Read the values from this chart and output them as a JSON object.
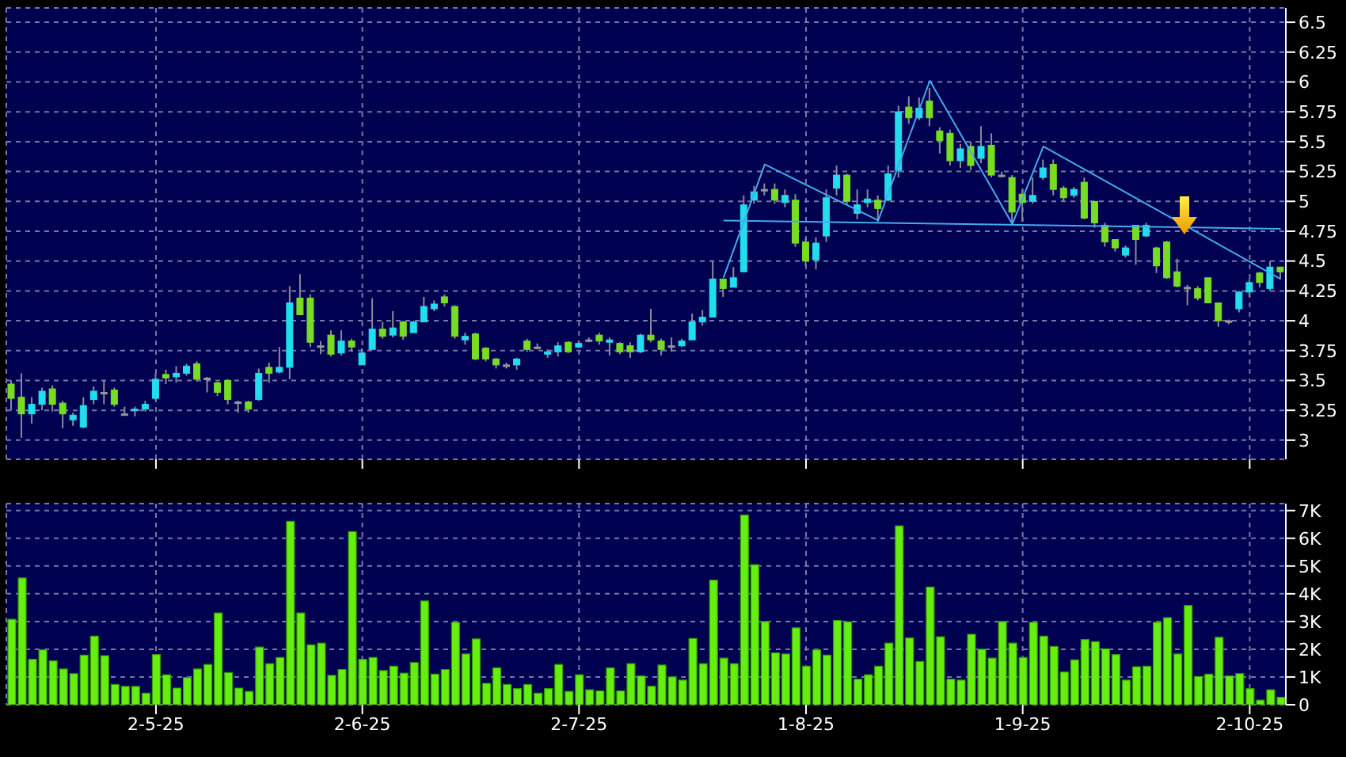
{
  "chart_data": [
    {
      "type": "candlestick",
      "categories": [
        null,
        null,
        null,
        null,
        null,
        null,
        null,
        null,
        null,
        null,
        null,
        null,
        null,
        null,
        null,
        null,
        null,
        null,
        null,
        null,
        null,
        null,
        null,
        null,
        null,
        null,
        null,
        null,
        null,
        null,
        null,
        null,
        null,
        null,
        null,
        null,
        null,
        null,
        null,
        null,
        null,
        null,
        null,
        null,
        null,
        null,
        null,
        null,
        null,
        null,
        null,
        null,
        null,
        null,
        null,
        null,
        null,
        null,
        null,
        null,
        null,
        null,
        null,
        null,
        null,
        null,
        null,
        null,
        null,
        null,
        null,
        null,
        null,
        null,
        null,
        null,
        null,
        null,
        null,
        null,
        null,
        null,
        null,
        null,
        null,
        null,
        null,
        null,
        null,
        null,
        null,
        null,
        null,
        null,
        null,
        null,
        null,
        null,
        null,
        null,
        null,
        null,
        null,
        null,
        null,
        null,
        null,
        null,
        null,
        null,
        null,
        null,
        null,
        null,
        null,
        null,
        null,
        null,
        null,
        null,
        null,
        null,
        null,
        null
      ],
      "ohlc": [
        [
          3.47,
          3.5,
          3.25,
          3.35
        ],
        [
          3.36,
          3.56,
          3.02,
          3.22
        ],
        [
          3.22,
          3.36,
          3.14,
          3.3
        ],
        [
          3.3,
          3.44,
          3.25,
          3.41
        ],
        [
          3.43,
          3.46,
          3.24,
          3.3
        ],
        [
          3.31,
          3.33,
          3.1,
          3.22
        ],
        [
          3.17,
          3.23,
          3.12,
          3.21
        ],
        [
          3.11,
          3.36,
          3.1,
          3.29
        ],
        [
          3.34,
          3.45,
          3.3,
          3.41
        ],
        [
          3.4,
          3.5,
          3.3,
          3.4
        ],
        [
          3.42,
          3.44,
          3.28,
          3.3
        ],
        [
          3.22,
          3.28,
          3.21,
          3.22
        ],
        [
          3.25,
          3.28,
          3.2,
          3.26
        ],
        [
          3.26,
          3.33,
          3.24,
          3.3
        ],
        [
          3.35,
          3.56,
          3.33,
          3.51
        ],
        [
          3.55,
          3.59,
          3.47,
          3.52
        ],
        [
          3.53,
          3.62,
          3.48,
          3.56
        ],
        [
          3.56,
          3.64,
          3.54,
          3.62
        ],
        [
          3.64,
          3.66,
          3.49,
          3.51
        ],
        [
          3.52,
          3.53,
          3.4,
          3.52
        ],
        [
          3.48,
          3.49,
          3.37,
          3.4
        ],
        [
          3.5,
          3.51,
          3.3,
          3.34
        ],
        [
          3.32,
          3.33,
          3.23,
          3.32
        ],
        [
          3.32,
          3.33,
          3.23,
          3.26
        ],
        [
          3.34,
          3.6,
          3.33,
          3.56
        ],
        [
          3.61,
          3.65,
          3.48,
          3.56
        ],
        [
          3.57,
          3.78,
          3.56,
          3.61
        ],
        [
          3.61,
          4.29,
          3.51,
          4.15
        ],
        [
          4.19,
          4.39,
          4.05,
          4.05
        ],
        [
          4.19,
          4.22,
          3.78,
          3.82
        ],
        [
          3.79,
          3.83,
          3.72,
          3.79
        ],
        [
          3.88,
          3.92,
          3.7,
          3.72
        ],
        [
          3.73,
          3.92,
          3.71,
          3.83
        ],
        [
          3.83,
          3.85,
          3.74,
          3.78
        ],
        [
          3.63,
          3.77,
          3.63,
          3.73
        ],
        [
          3.76,
          4.19,
          3.76,
          3.93
        ],
        [
          3.93,
          3.99,
          3.85,
          3.87
        ],
        [
          3.88,
          4.08,
          3.86,
          3.94
        ],
        [
          3.99,
          4.0,
          3.84,
          3.87
        ],
        [
          3.9,
          4.0,
          3.9,
          3.99
        ],
        [
          3.99,
          4.2,
          3.99,
          4.12
        ],
        [
          4.1,
          4.17,
          4.08,
          4.14
        ],
        [
          4.2,
          4.22,
          4.12,
          4.15
        ],
        [
          4.12,
          4.13,
          3.85,
          3.87
        ],
        [
          3.84,
          3.9,
          3.8,
          3.87
        ],
        [
          3.89,
          3.9,
          3.67,
          3.68
        ],
        [
          3.77,
          3.78,
          3.66,
          3.68
        ],
        [
          3.68,
          3.69,
          3.6,
          3.63
        ],
        [
          3.63,
          3.65,
          3.6,
          3.63
        ],
        [
          3.63,
          3.69,
          3.59,
          3.68
        ],
        [
          3.83,
          3.85,
          3.74,
          3.76
        ],
        [
          3.78,
          3.81,
          3.76,
          3.78
        ],
        [
          3.72,
          3.76,
          3.69,
          3.74
        ],
        [
          3.74,
          3.82,
          3.7,
          3.79
        ],
        [
          3.82,
          3.83,
          3.73,
          3.74
        ],
        [
          3.78,
          3.83,
          3.77,
          3.81
        ],
        [
          3.84,
          3.86,
          3.82,
          3.84
        ],
        [
          3.88,
          3.9,
          3.8,
          3.83
        ],
        [
          3.82,
          3.86,
          3.71,
          3.84
        ],
        [
          3.81,
          3.82,
          3.72,
          3.74
        ],
        [
          3.79,
          3.82,
          3.69,
          3.74
        ],
        [
          3.74,
          3.89,
          3.73,
          3.88
        ],
        [
          3.88,
          4.1,
          3.82,
          3.84
        ],
        [
          3.83,
          3.85,
          3.71,
          3.76
        ],
        [
          3.79,
          3.86,
          3.74,
          3.79
        ],
        [
          3.79,
          3.85,
          3.78,
          3.83
        ],
        [
          3.84,
          4.06,
          3.84,
          3.99
        ],
        [
          3.99,
          4.09,
          3.96,
          4.03
        ],
        [
          4.03,
          4.5,
          4.03,
          4.35
        ],
        [
          4.35,
          4.35,
          4.2,
          4.27
        ],
        [
          4.28,
          4.45,
          4.28,
          4.36
        ],
        [
          4.41,
          5.05,
          4.41,
          4.97
        ],
        [
          5.01,
          5.13,
          4.98,
          5.08
        ],
        [
          5.1,
          5.15,
          5.05,
          5.1
        ],
        [
          5.1,
          5.15,
          4.98,
          5.01
        ],
        [
          4.99,
          5.1,
          4.95,
          5.05
        ],
        [
          5.01,
          5.06,
          4.62,
          4.65
        ],
        [
          4.66,
          4.69,
          4.46,
          4.5
        ],
        [
          4.51,
          4.7,
          4.43,
          4.65
        ],
        [
          4.71,
          5.1,
          4.66,
          5.03
        ],
        [
          5.11,
          5.3,
          5.05,
          5.22
        ],
        [
          5.22,
          5.23,
          4.97,
          5.0
        ],
        [
          4.9,
          5.1,
          4.85,
          4.97
        ],
        [
          4.99,
          5.1,
          4.95,
          5.02
        ],
        [
          5.01,
          5.05,
          4.83,
          4.94
        ],
        [
          5.01,
          5.3,
          5.0,
          5.23
        ],
        [
          5.26,
          5.8,
          5.2,
          5.75
        ],
        [
          5.79,
          5.88,
          5.65,
          5.7
        ],
        [
          5.7,
          5.87,
          5.68,
          5.78
        ],
        [
          5.84,
          5.95,
          5.63,
          5.7
        ],
        [
          5.59,
          5.62,
          5.4,
          5.51
        ],
        [
          5.57,
          5.6,
          5.3,
          5.34
        ],
        [
          5.34,
          5.48,
          5.28,
          5.44
        ],
        [
          5.46,
          5.5,
          5.26,
          5.3
        ],
        [
          5.36,
          5.63,
          5.32,
          5.46
        ],
        [
          5.47,
          5.57,
          5.2,
          5.22
        ],
        [
          5.22,
          5.25,
          5.2,
          5.22
        ],
        [
          5.2,
          5.22,
          4.8,
          4.91
        ],
        [
          5.06,
          5.1,
          4.83,
          4.99
        ],
        [
          5.0,
          5.2,
          4.98,
          5.05
        ],
        [
          5.2,
          5.35,
          5.18,
          5.28
        ],
        [
          5.31,
          5.35,
          5.05,
          5.1
        ],
        [
          5.11,
          5.13,
          5.0,
          5.03
        ],
        [
          5.05,
          5.12,
          5.03,
          5.1
        ],
        [
          5.16,
          5.2,
          4.85,
          4.86
        ],
        [
          5.0,
          5.0,
          4.78,
          4.82
        ],
        [
          4.8,
          4.82,
          4.62,
          4.66
        ],
        [
          4.68,
          4.68,
          4.58,
          4.61
        ],
        [
          4.55,
          4.63,
          4.53,
          4.61
        ],
        [
          4.8,
          4.8,
          4.47,
          4.68
        ],
        [
          4.71,
          4.82,
          4.7,
          4.8
        ],
        [
          4.61,
          4.62,
          4.4,
          4.46
        ],
        [
          4.66,
          4.67,
          4.35,
          4.36
        ],
        [
          4.41,
          4.52,
          4.28,
          4.29
        ],
        [
          4.28,
          4.3,
          4.13,
          4.28
        ],
        [
          4.27,
          4.29,
          4.17,
          4.19
        ],
        [
          4.36,
          4.36,
          4.15,
          4.15
        ],
        [
          4.15,
          4.15,
          3.95,
          4.0
        ],
        [
          4.0,
          4.01,
          3.97,
          4.0
        ],
        [
          4.1,
          4.25,
          4.07,
          4.24
        ],
        [
          4.24,
          4.35,
          4.2,
          4.32
        ],
        [
          4.4,
          4.41,
          4.28,
          4.32
        ],
        [
          4.27,
          4.5,
          4.25,
          4.45
        ],
        [
          4.45,
          4.45,
          4.35,
          4.41
        ]
      ],
      "colors": [
        "#77dd22",
        "#77dd22",
        "#22ddee",
        "#22ddee",
        "#77dd22",
        "#77dd22",
        "#22ddee",
        "#22ddee",
        "#22ddee",
        "#999999",
        "#77dd22",
        "#999999",
        "#22ddee",
        "#22ddee",
        "#22ddee",
        "#77dd22",
        "#22ddee",
        "#22ddee",
        "#77dd22",
        "#999999",
        "#77dd22",
        "#77dd22",
        "#999999",
        "#77dd22",
        "#22ddee",
        "#77dd22",
        "#22ddee",
        "#22ddee",
        "#77dd22",
        "#77dd22",
        "#999999",
        "#77dd22",
        "#22ddee",
        "#77dd22",
        "#22ddee",
        "#22ddee",
        "#77dd22",
        "#22ddee",
        "#77dd22",
        "#22ddee",
        "#22ddee",
        "#22ddee",
        "#77dd22",
        "#77dd22",
        "#22ddee",
        "#77dd22",
        "#77dd22",
        "#77dd22",
        "#999999",
        "#22ddee",
        "#77dd22",
        "#999999",
        "#22ddee",
        "#22ddee",
        "#77dd22",
        "#22ddee",
        "#999999",
        "#77dd22",
        "#22ddee",
        "#77dd22",
        "#77dd22",
        "#22ddee",
        "#77dd22",
        "#77dd22",
        "#999999",
        "#22ddee",
        "#22ddee",
        "#22ddee",
        "#22ddee",
        "#77dd22",
        "#22ddee",
        "#22ddee",
        "#22ddee",
        "#999999",
        "#77dd22",
        "#22ddee",
        "#77dd22",
        "#77dd22",
        "#22ddee",
        "#22ddee",
        "#22ddee",
        "#77dd22",
        "#22ddee",
        "#22ddee",
        "#77dd22",
        "#22ddee",
        "#22ddee",
        "#77dd22",
        "#22ddee",
        "#77dd22",
        "#77dd22",
        "#77dd22",
        "#22ddee",
        "#77dd22",
        "#22ddee",
        "#77dd22",
        "#999999",
        "#77dd22",
        "#77dd22",
        "#22ddee",
        "#22ddee",
        "#77dd22",
        "#77dd22",
        "#22ddee",
        "#77dd22",
        "#77dd22",
        "#77dd22",
        "#77dd22",
        "#22ddee",
        "#77dd22",
        "#22ddee",
        "#77dd22",
        "#77dd22",
        "#77dd22",
        "#999999",
        "#77dd22",
        "#77dd22",
        "#77dd22",
        "#999999",
        "#22ddee",
        "#22ddee",
        "#77dd22",
        "#22ddee",
        "#77dd22"
      ],
      "series": [
        {
          "type": "line",
          "color": "#44aaee",
          "values": [
            null,
            null,
            null,
            null,
            null,
            null,
            null,
            null,
            null,
            null,
            null,
            null,
            null,
            null,
            null,
            null,
            null,
            null,
            null,
            null,
            null,
            null,
            null,
            null,
            null,
            null,
            null,
            null,
            null,
            null,
            null,
            null,
            null,
            null,
            null,
            null,
            null,
            null,
            null,
            null,
            null,
            null,
            null,
            null,
            null,
            null,
            null,
            null,
            null,
            null,
            null,
            null,
            null,
            null,
            null,
            null,
            null,
            null,
            null,
            null,
            null,
            null,
            null,
            null,
            null,
            null,
            null,
            null,
            null,
            4.36,
            null,
            null,
            null,
            5.31,
            null,
            null,
            null,
            null,
            null,
            null,
            null,
            null,
            null,
            null,
            4.84,
            null,
            null,
            null,
            null,
            6.01,
            null,
            null,
            null,
            null,
            null,
            null,
            null,
            4.81,
            null,
            null,
            5.46,
            null,
            null,
            null,
            null,
            null,
            null,
            null,
            null,
            null,
            null,
            null,
            null,
            null,
            null,
            null,
            null,
            null,
            null,
            null,
            null,
            null,
            null,
            4.35
          ]
        },
        {
          "type": "line",
          "color": "#44aaee",
          "values": [
            null,
            null,
            null,
            null,
            null,
            null,
            null,
            null,
            null,
            null,
            null,
            null,
            null,
            null,
            null,
            null,
            null,
            null,
            null,
            null,
            null,
            null,
            null,
            null,
            null,
            null,
            null,
            null,
            null,
            null,
            null,
            null,
            null,
            null,
            null,
            null,
            null,
            null,
            null,
            null,
            null,
            null,
            null,
            null,
            null,
            null,
            null,
            null,
            null,
            null,
            null,
            null,
            null,
            null,
            null,
            null,
            null,
            null,
            null,
            null,
            null,
            null,
            null,
            null,
            null,
            null,
            null,
            null,
            null,
            4.84,
            null,
            null,
            null,
            null,
            null,
            null,
            null,
            null,
            null,
            null,
            null,
            null,
            null,
            null,
            null,
            null,
            null,
            null,
            null,
            null,
            null,
            null,
            null,
            null,
            null,
            null,
            null,
            null,
            null,
            null,
            null,
            null,
            null,
            null,
            null,
            null,
            null,
            null,
            null,
            null,
            null,
            null,
            null,
            null,
            null,
            null,
            null,
            null,
            null,
            null,
            null,
            null,
            null,
            4.77
          ]
        }
      ],
      "ylim": [
        2.84,
        6.62
      ],
      "yticks": [
        3,
        3.25,
        3.5,
        3.75,
        4,
        4.25,
        4.5,
        4.75,
        5,
        5.25,
        5.5,
        5.75,
        6,
        6.25,
        6.5
      ],
      "grid": true
    },
    {
      "type": "bar",
      "categories": [
        null,
        null,
        null,
        null,
        null,
        null,
        null,
        null,
        null,
        null,
        null,
        null,
        null,
        null,
        "2-5-25",
        null,
        null,
        null,
        null,
        null,
        null,
        null,
        null,
        null,
        null,
        null,
        null,
        null,
        null,
        null,
        null,
        null,
        null,
        null,
        "2-6-25",
        null,
        null,
        null,
        null,
        null,
        null,
        null,
        null,
        null,
        null,
        null,
        null,
        null,
        null,
        null,
        null,
        null,
        null,
        null,
        null,
        "2-7-25",
        null,
        null,
        null,
        null,
        null,
        null,
        null,
        null,
        null,
        null,
        null,
        null,
        null,
        null,
        null,
        null,
        null,
        null,
        null,
        null,
        null,
        "1-8-25",
        null,
        null,
        null,
        null,
        null,
        null,
        null,
        null,
        null,
        null,
        null,
        null,
        null,
        null,
        null,
        null,
        null,
        null,
        null,
        null,
        "1-9-25",
        null,
        null,
        null,
        null,
        null,
        null,
        null,
        null,
        null,
        null,
        null,
        null,
        null,
        null,
        null,
        null,
        null,
        null,
        null,
        null,
        null,
        "2-10-25",
        null,
        null,
        null
      ],
      "values": [
        3.08,
        4.57,
        1.64,
        1.98,
        1.58,
        1.29,
        1.12,
        1.79,
        2.47,
        1.77,
        0.73,
        0.66,
        0.66,
        0.42,
        1.81,
        1.08,
        0.6,
        0.98,
        1.29,
        1.45,
        3.31,
        1.16,
        0.6,
        0.48,
        2.08,
        1.48,
        1.7,
        6.61,
        3.31,
        2.16,
        2.22,
        1.06,
        1.27,
        6.24,
        1.64,
        1.7,
        1.23,
        1.39,
        1.14,
        1.52,
        3.74,
        1.1,
        1.27,
        2.97,
        1.83,
        2.37,
        0.77,
        1.33,
        0.73,
        0.58,
        0.73,
        0.42,
        0.58,
        1.45,
        0.48,
        1.08,
        0.54,
        0.5,
        1.33,
        0.5,
        1.48,
        1.04,
        0.67,
        1.43,
        1.0,
        0.89,
        2.39,
        1.48,
        4.49,
        1.68,
        1.48,
        6.84,
        5.05,
        3.0,
        1.87,
        1.83,
        2.77,
        1.39,
        1.98,
        1.79,
        3.04,
        2.99,
        0.92,
        1.08,
        1.39,
        2.22,
        6.45,
        2.41,
        1.56,
        4.24,
        2.45,
        0.92,
        0.89,
        2.54,
        2.0,
        1.68,
        3.0,
        2.22,
        1.7,
        2.97,
        2.47,
        2.1,
        1.18,
        1.62,
        2.35,
        2.27,
        2.02,
        1.81,
        0.89,
        1.37,
        1.39,
        2.97,
        3.14,
        1.83,
        3.58,
        1.02,
        1.1,
        2.43,
        1.04,
        1.12,
        0.58,
        0.17,
        0.54,
        0.27
      ],
      "color": "#66ee11",
      "ylim": [
        0,
        7.25
      ],
      "yticks": [
        0,
        {
          "value": 1,
          "label": "1K"
        },
        {
          "value": 2,
          "label": "2K"
        },
        {
          "value": 3,
          "label": "3K"
        },
        {
          "value": 4,
          "label": "4K"
        },
        {
          "value": 5,
          "label": "5K"
        },
        {
          "value": 6,
          "label": "6K"
        },
        {
          "value": 7,
          "label": "7K"
        }
      ],
      "grid": true
    }
  ]
}
